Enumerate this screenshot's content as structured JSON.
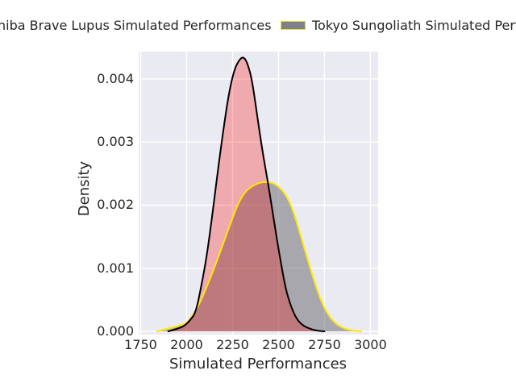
{
  "figure": {
    "background": "#FFFFFF",
    "axes_background": "#EAEAF2",
    "grid_color": "#FFFFFF",
    "text_color": "#262626"
  },
  "legend": {
    "entries": [
      {
        "label": "hiba Brave Lupus Simulated Performances",
        "swatch_fill": "#c98b90",
        "swatch_border": "#000000",
        "fully_visible": false
      },
      {
        "label": "Tokyo Sungoliath Simulated Perfo",
        "swatch_fill": "#80808a",
        "swatch_border": "#e5dd35",
        "fully_visible": true
      }
    ]
  },
  "chart_data": {
    "type": "area",
    "subtype": "kde-density",
    "title": "",
    "xlabel": "Simulated Performances",
    "ylabel": "Density",
    "xlim": [
      1739,
      3042
    ],
    "ylim": [
      -5.1e-05,
      0.004434
    ],
    "x_ticks": [
      1750,
      2000,
      2250,
      2500,
      2750,
      3000
    ],
    "y_ticks": [
      "0.000",
      "0.001",
      "0.002",
      "0.003",
      "0.004"
    ],
    "y_tick_values": [
      0,
      0.001,
      0.002,
      0.003,
      0.004
    ],
    "grid": true,
    "legend_position": "top",
    "series": [
      {
        "name": "Tokyo Sungoliath Simulated Perfo",
        "line_color": "#ffe800",
        "line_width": 2,
        "fill_color": "rgba(105,105,110,0.52)",
        "points": [
          [
            1840,
            0.0
          ],
          [
            1880,
            3e-05
          ],
          [
            1920,
            6e-05
          ],
          [
            1960,
            9e-05
          ],
          [
            2000,
            0.00013
          ],
          [
            2040,
            0.00028
          ],
          [
            2080,
            0.0005
          ],
          [
            2120,
            0.00078
          ],
          [
            2160,
            0.00108
          ],
          [
            2200,
            0.0014
          ],
          [
            2240,
            0.00172
          ],
          [
            2280,
            0.00203
          ],
          [
            2320,
            0.00222
          ],
          [
            2360,
            0.00231
          ],
          [
            2400,
            0.00236
          ],
          [
            2440,
            0.00237
          ],
          [
            2480,
            0.00234
          ],
          [
            2520,
            0.00224
          ],
          [
            2550,
            0.00211
          ],
          [
            2580,
            0.00191
          ],
          [
            2610,
            0.00162
          ],
          [
            2650,
            0.00122
          ],
          [
            2690,
            0.00083
          ],
          [
            2730,
            0.00049
          ],
          [
            2770,
            0.00026
          ],
          [
            2810,
            0.00012
          ],
          [
            2860,
            4e-05
          ],
          [
            2910,
            1e-05
          ],
          [
            2950,
            0.0
          ]
        ]
      },
      {
        "name": "hiba Brave Lupus Simulated Performances",
        "line_color": "#000000",
        "line_width": 2,
        "fill_color": "rgba(255,0,0,0.27)",
        "points": [
          [
            1900,
            0.0
          ],
          [
            1950,
            4e-05
          ],
          [
            1990,
            9e-05
          ],
          [
            2020,
            0.00018
          ],
          [
            2050,
            0.0003
          ],
          [
            2080,
            0.00072
          ],
          [
            2110,
            0.0012
          ],
          [
            2140,
            0.00185
          ],
          [
            2170,
            0.00255
          ],
          [
            2200,
            0.0032
          ],
          [
            2230,
            0.00378
          ],
          [
            2260,
            0.00416
          ],
          [
            2290,
            0.00432
          ],
          [
            2310,
            0.00435
          ],
          [
            2330,
            0.00426
          ],
          [
            2355,
            0.004
          ],
          [
            2380,
            0.0035
          ],
          [
            2410,
            0.0029
          ],
          [
            2440,
            0.0024
          ],
          [
            2465,
            0.00195
          ],
          [
            2490,
            0.00148
          ],
          [
            2515,
            0.00105
          ],
          [
            2540,
            0.00066
          ],
          [
            2565,
            0.00042
          ],
          [
            2590,
            0.00024
          ],
          [
            2620,
            0.00012
          ],
          [
            2660,
            5e-05
          ],
          [
            2710,
            1e-05
          ],
          [
            2750,
            0.0
          ]
        ]
      }
    ]
  }
}
